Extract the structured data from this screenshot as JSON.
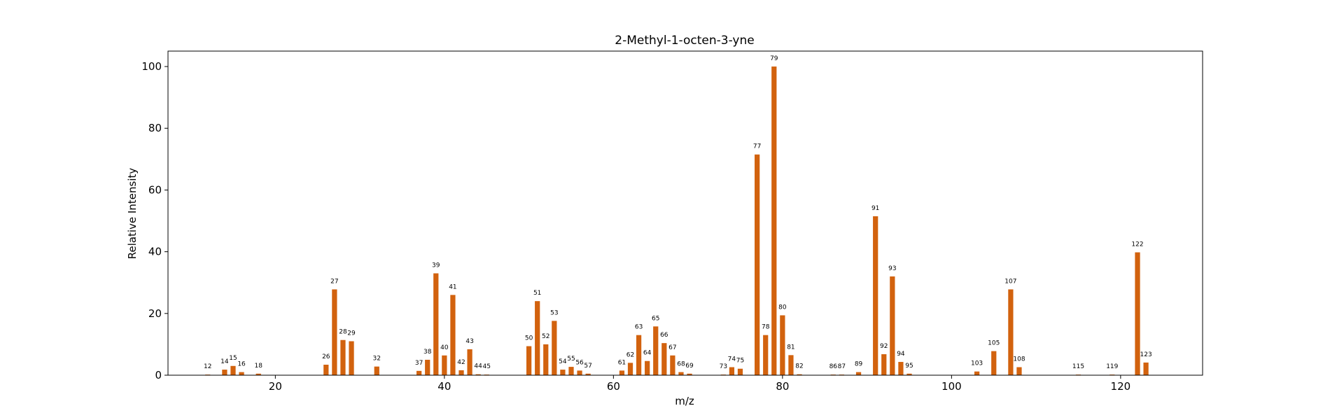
{
  "chart_data": {
    "type": "bar",
    "title": "2-Methyl-1-octen-3-yne",
    "xlabel": "m/z",
    "ylabel": "Relative Intensity",
    "xlim": [
      7.3,
      129.7
    ],
    "ylim": [
      0,
      105
    ],
    "xticks": [
      20,
      40,
      60,
      80,
      100,
      120
    ],
    "yticks": [
      0,
      20,
      40,
      60,
      80,
      100
    ],
    "grid": false,
    "bar_color": "#d2620e",
    "x": [
      12,
      14,
      15,
      16,
      18,
      26,
      27,
      28,
      29,
      32,
      37,
      38,
      39,
      40,
      41,
      42,
      43,
      44,
      45,
      50,
      51,
      52,
      53,
      54,
      55,
      56,
      57,
      61,
      62,
      63,
      64,
      65,
      66,
      67,
      68,
      69,
      73,
      74,
      75,
      77,
      78,
      79,
      80,
      81,
      82,
      86,
      87,
      89,
      91,
      92,
      93,
      94,
      95,
      103,
      105,
      107,
      108,
      115,
      119,
      122,
      123
    ],
    "values": [
      0.2,
      1.8,
      3.0,
      1.0,
      0.5,
      3.4,
      27.8,
      11.4,
      11.0,
      2.8,
      1.4,
      5.0,
      33.0,
      6.4,
      26.0,
      1.6,
      8.4,
      0.3,
      0.2,
      9.4,
      24.0,
      10.0,
      17.6,
      1.8,
      2.7,
      1.5,
      0.5,
      1.5,
      4.0,
      13.0,
      4.6,
      15.8,
      10.4,
      6.4,
      1.0,
      0.5,
      0.2,
      2.6,
      2.1,
      71.5,
      13.0,
      100.0,
      19.4,
      6.5,
      0.3,
      0.2,
      0.2,
      1.0,
      51.5,
      6.8,
      32.0,
      4.3,
      0.5,
      1.2,
      7.8,
      27.8,
      2.6,
      0.2,
      0.2,
      39.8,
      4.1
    ]
  }
}
